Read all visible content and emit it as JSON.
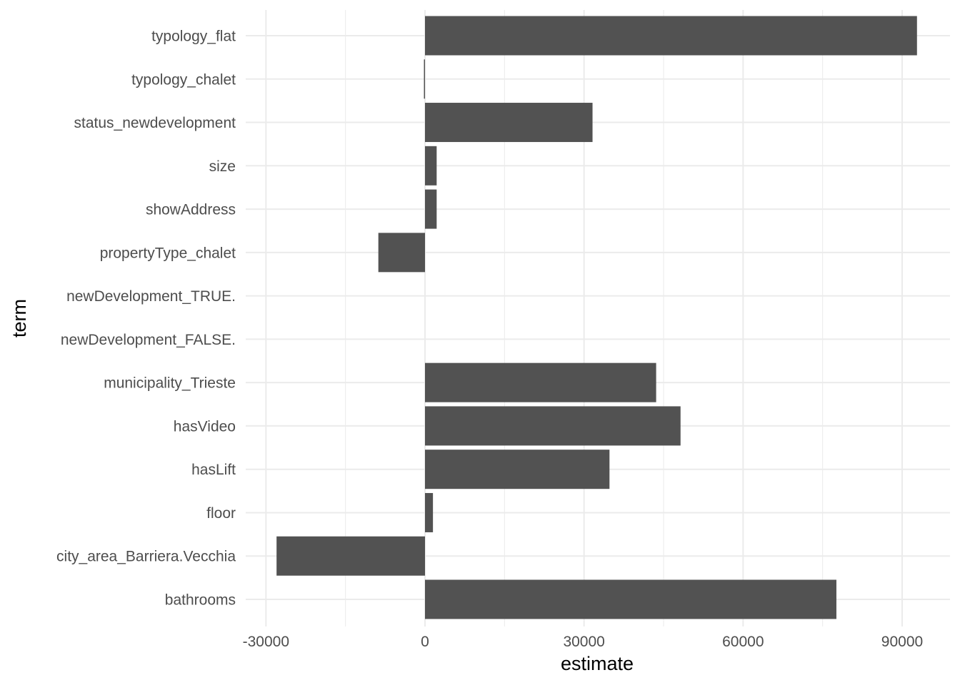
{
  "chart_data": {
    "type": "bar",
    "orientation": "horizontal",
    "xlabel": "estimate",
    "ylabel": "term",
    "xlim": [
      -40000,
      96500
    ],
    "x_ticks": [
      -30000,
      0,
      30000,
      60000,
      90000
    ],
    "x_tick_labels": [
      "-30000",
      "0",
      "30000",
      "60000",
      "90000"
    ],
    "categories": [
      "typology_flat",
      "typology_chalet",
      "status_newdevelopment",
      "size",
      "showAddress",
      "propertyType_chalet",
      "newDevelopment_TRUE.",
      "newDevelopment_FALSE.",
      "municipality_Trieste",
      "hasVideo",
      "hasLift",
      "floor",
      "city_area_Barriera.Vecchia",
      "bathrooms"
    ],
    "values": [
      92800,
      -200,
      31600,
      2200,
      2200,
      -8800,
      0,
      0,
      43600,
      48200,
      34800,
      1500,
      -28000,
      77600
    ],
    "grid": true,
    "legend": "none",
    "bar_color": "#525252",
    "grid_color": "#ebebeb"
  }
}
